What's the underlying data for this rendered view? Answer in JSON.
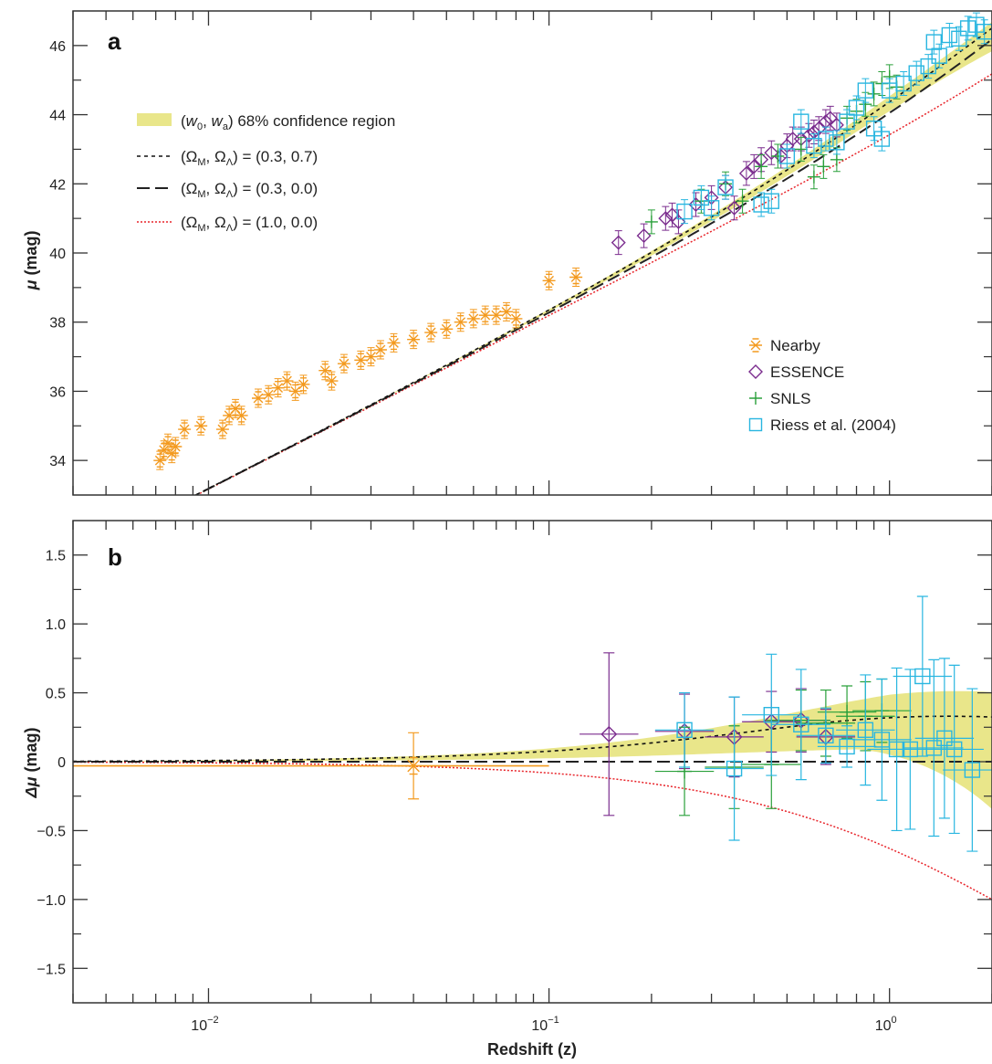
{
  "colors": {
    "nearby": "#f39a1f",
    "essence": "#7b2d8e",
    "snls": "#2aa03b",
    "riess": "#29b6e0",
    "confidence_band": "#e9e68a",
    "lcdm": "#111111",
    "open": "#222222",
    "eds": "#e8252b"
  },
  "top_legend": {
    "confidence": {
      "pre": "(",
      "w0": "w",
      "w0_sub": "0",
      "sep": ", ",
      "wa": "w",
      "wa_sub": "a",
      "post": ") 68% confidence region"
    },
    "lcdm": {
      "pre": "(Ω",
      "sub1": "M",
      "mid": ", Ω",
      "sub2": "Λ",
      "post": ") = (0.3, 0.7)"
    },
    "open": {
      "pre": "(Ω",
      "sub1": "M",
      "mid": ", Ω",
      "sub2": "Λ",
      "post": ") = (0.3, 0.0)"
    },
    "eds": {
      "pre": "(Ω",
      "sub1": "M",
      "mid": ", Ω",
      "sub2": "Λ",
      "post": ") = (1.0, 0.0)"
    }
  },
  "marker_legend": {
    "nearby": "Nearby",
    "essence": "ESSENCE",
    "snls": "SNLS",
    "riess": "Riess et al. (2004)"
  },
  "chart_data": [
    {
      "panel": "a",
      "type": "scatter",
      "xlabel": "Redshift (z)",
      "ylabel": {
        "symbol": "μ",
        "unit": " (mag)"
      },
      "xscale": "log",
      "xlim": [
        0.004,
        2.0
      ],
      "ylim": [
        33.0,
        47.0
      ],
      "yticks": [
        "34",
        "36",
        "38",
        "40",
        "42",
        "44",
        "46"
      ],
      "series": [
        {
          "name": "Nearby",
          "marker": "asterisk",
          "points": [
            [
              0.0072,
              34.0
            ],
            [
              0.0074,
              34.3
            ],
            [
              0.0076,
              34.5
            ],
            [
              0.0078,
              34.2
            ],
            [
              0.008,
              34.4
            ],
            [
              0.0085,
              34.9
            ],
            [
              0.0095,
              35.0
            ],
            [
              0.011,
              34.9
            ],
            [
              0.0115,
              35.3
            ],
            [
              0.012,
              35.5
            ],
            [
              0.0125,
              35.3
            ],
            [
              0.014,
              35.8
            ],
            [
              0.015,
              35.9
            ],
            [
              0.016,
              36.1
            ],
            [
              0.017,
              36.3
            ],
            [
              0.018,
              36.0
            ],
            [
              0.019,
              36.2
            ],
            [
              0.022,
              36.6
            ],
            [
              0.023,
              36.3
            ],
            [
              0.025,
              36.8
            ],
            [
              0.028,
              36.9
            ],
            [
              0.03,
              37.0
            ],
            [
              0.032,
              37.2
            ],
            [
              0.035,
              37.4
            ],
            [
              0.04,
              37.5
            ],
            [
              0.045,
              37.7
            ],
            [
              0.05,
              37.8
            ],
            [
              0.055,
              38.0
            ],
            [
              0.06,
              38.1
            ],
            [
              0.065,
              38.2
            ],
            [
              0.07,
              38.2
            ],
            [
              0.075,
              38.3
            ],
            [
              0.08,
              38.1
            ],
            [
              0.1,
              39.2
            ],
            [
              0.12,
              39.3
            ]
          ]
        },
        {
          "name": "ESSENCE",
          "marker": "diamond",
          "points": [
            [
              0.16,
              40.3
            ],
            [
              0.19,
              40.5
            ],
            [
              0.22,
              41.0
            ],
            [
              0.23,
              41.1
            ],
            [
              0.24,
              40.9
            ],
            [
              0.27,
              41.4
            ],
            [
              0.3,
              41.6
            ],
            [
              0.33,
              41.9
            ],
            [
              0.35,
              41.3
            ],
            [
              0.38,
              42.3
            ],
            [
              0.4,
              42.5
            ],
            [
              0.42,
              42.7
            ],
            [
              0.45,
              42.9
            ],
            [
              0.48,
              42.8
            ],
            [
              0.5,
              43.1
            ],
            [
              0.52,
              43.3
            ],
            [
              0.55,
              43.3
            ],
            [
              0.58,
              43.4
            ],
            [
              0.6,
              43.5
            ],
            [
              0.62,
              43.6
            ],
            [
              0.65,
              43.8
            ],
            [
              0.67,
              43.9
            ],
            [
              0.7,
              43.7
            ]
          ]
        },
        {
          "name": "SNLS",
          "marker": "plus",
          "points": [
            [
              0.2,
              40.9
            ],
            [
              0.28,
              41.5
            ],
            [
              0.33,
              42.0
            ],
            [
              0.37,
              41.5
            ],
            [
              0.42,
              42.5
            ],
            [
              0.47,
              42.8
            ],
            [
              0.55,
              43.0
            ],
            [
              0.6,
              42.2
            ],
            [
              0.64,
              42.5
            ],
            [
              0.7,
              42.7
            ],
            [
              0.75,
              43.9
            ],
            [
              0.8,
              44.1
            ],
            [
              0.85,
              44.3
            ],
            [
              0.9,
              44.6
            ],
            [
              0.95,
              44.9
            ],
            [
              1.0,
              45.1
            ],
            [
              1.05,
              44.8
            ]
          ]
        },
        {
          "name": "Riess et al. (2004)",
          "marker": "square",
          "points": [
            [
              0.25,
              41.2
            ],
            [
              0.28,
              41.6
            ],
            [
              0.3,
              41.3
            ],
            [
              0.33,
              41.9
            ],
            [
              0.42,
              41.4
            ],
            [
              0.45,
              41.5
            ],
            [
              0.5,
              42.8
            ],
            [
              0.55,
              43.8
            ],
            [
              0.6,
              43.1
            ],
            [
              0.65,
              43.3
            ],
            [
              0.7,
              43.2
            ],
            [
              0.75,
              43.8
            ],
            [
              0.8,
              44.2
            ],
            [
              0.85,
              44.7
            ],
            [
              0.9,
              43.6
            ],
            [
              0.95,
              43.3
            ],
            [
              1.0,
              44.7
            ],
            [
              1.1,
              44.9
            ],
            [
              1.2,
              45.2
            ],
            [
              1.3,
              45.4
            ],
            [
              1.35,
              46.1
            ],
            [
              1.4,
              45.7
            ],
            [
              1.5,
              46.3
            ],
            [
              1.6,
              46.2
            ],
            [
              1.7,
              46.5
            ],
            [
              1.8,
              46.6
            ],
            [
              1.9,
              46.4
            ]
          ]
        }
      ]
    },
    {
      "panel": "b",
      "type": "scatter",
      "xlabel": "Redshift (z)",
      "ylabel": {
        "symbol": "Δμ",
        "unit": " (mag)"
      },
      "xscale": "log",
      "xlim": [
        0.004,
        2.0
      ],
      "ylim": [
        -1.75,
        1.75
      ],
      "yticks": [
        "1.5",
        "1.0",
        "0.5",
        "0",
        "−0.5",
        "−1.0",
        "−1.5"
      ],
      "xticks": [
        {
          "base": "10",
          "exp": "−2"
        },
        {
          "base": "10",
          "exp": "−1"
        },
        {
          "base": "10",
          "exp": "0"
        }
      ],
      "series": [
        {
          "name": "Nearby",
          "marker": "asterisk",
          "points": [
            [
              0.04,
              -0.03,
              0.24
            ]
          ]
        },
        {
          "name": "ESSENCE",
          "marker": "diamond",
          "points": [
            [
              0.15,
              0.2,
              0.59
            ],
            [
              0.25,
              0.22,
              0.27
            ],
            [
              0.35,
              0.18,
              0.29
            ],
            [
              0.45,
              0.29,
              0.22
            ],
            [
              0.55,
              0.3,
              0.23
            ],
            [
              0.65,
              0.18,
              0.2
            ]
          ]
        },
        {
          "name": "SNLS",
          "marker": "plus",
          "points": [
            [
              0.25,
              -0.07,
              0.32
            ],
            [
              0.35,
              -0.04,
              0.3
            ],
            [
              0.45,
              -0.02,
              0.32
            ],
            [
              0.55,
              0.3,
              0.22
            ],
            [
              0.65,
              0.28,
              0.24
            ],
            [
              0.75,
              0.36,
              0.19
            ],
            [
              0.85,
              0.33,
              0.25
            ],
            [
              0.95,
              0.37,
              0.23
            ]
          ]
        },
        {
          "name": "Riess et al. (2004)",
          "marker": "square",
          "points": [
            [
              0.25,
              0.23,
              0.27
            ],
            [
              0.35,
              -0.05,
              0.52
            ],
            [
              0.45,
              0.34,
              0.44
            ],
            [
              0.55,
              0.27,
              0.4
            ],
            [
              0.65,
              0.19,
              0.2
            ],
            [
              0.75,
              0.11,
              0.15
            ],
            [
              0.85,
              0.23,
              0.4
            ],
            [
              0.95,
              0.16,
              0.44
            ],
            [
              1.05,
              0.09,
              0.59
            ],
            [
              1.15,
              0.09,
              0.58
            ],
            [
              1.25,
              0.62,
              0.58
            ],
            [
              1.35,
              0.1,
              0.64
            ],
            [
              1.45,
              0.17,
              0.58
            ],
            [
              1.55,
              0.09,
              0.61
            ],
            [
              1.75,
              -0.06,
              0.59
            ]
          ]
        }
      ]
    }
  ]
}
